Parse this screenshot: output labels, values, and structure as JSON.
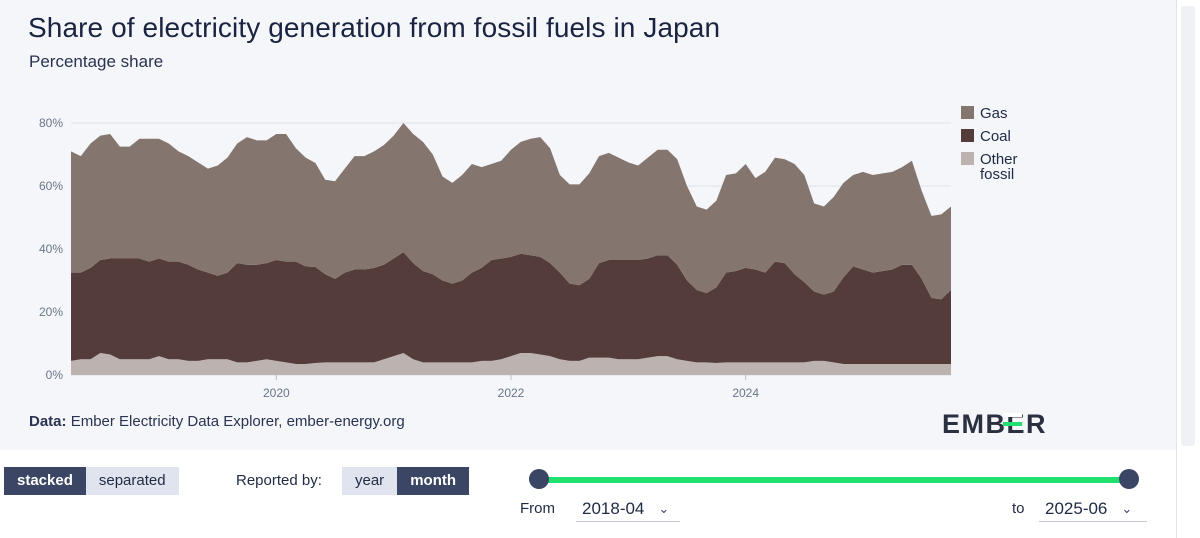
{
  "title": "Share of electricity generation from fossil fuels in Japan",
  "subtitle": "Percentage share",
  "source": {
    "label": "Data:",
    "text": "Ember Electricity Data Explorer, ember-energy.org"
  },
  "logo": {
    "text": "EMBER"
  },
  "colors": {
    "gas": "#85756f",
    "coal": "#533c3a",
    "other": "#bcb3b1",
    "grid": "#dfe2e8",
    "accent": "#22e070",
    "dark": "#3b4664"
  },
  "controls": {
    "view_options": [
      "stacked",
      "separated"
    ],
    "view_active": "stacked",
    "reported_label": "Reported by:",
    "reported_options": [
      "year",
      "month"
    ],
    "reported_active": "month",
    "from_label": "From",
    "to_label": "to",
    "from_value": "2018-04",
    "to_value": "2025-06"
  },
  "chart_data": {
    "type": "area",
    "stacked": true,
    "title": "Share of electricity generation from fossil fuels in Japan",
    "ylabel": "Percentage share",
    "ylim": [
      0,
      80
    ],
    "yticks": [
      0,
      20,
      40,
      60,
      80
    ],
    "ytick_labels": [
      "0%",
      "20%",
      "40%",
      "60%",
      "80%"
    ],
    "x_start": "2018-04",
    "x_end": "2025-06",
    "x_ticks": [
      "2020",
      "2022",
      "2024"
    ],
    "legend": [
      "Gas",
      "Coal",
      "Other fossil"
    ],
    "legend_position": "right",
    "series": [
      {
        "name": "Other fossil",
        "values": [
          4.5,
          5,
          5,
          7,
          6.5,
          5,
          5,
          5,
          5,
          6,
          5,
          5,
          4.5,
          4.5,
          5,
          5,
          5,
          4,
          4,
          4.5,
          5,
          4.5,
          4,
          3.5,
          3.5,
          3.8,
          4,
          4,
          4,
          4,
          4,
          4,
          5,
          6,
          7,
          5,
          4,
          4,
          4,
          4,
          4,
          4,
          4.5,
          4.5,
          5,
          6,
          7,
          7,
          6.5,
          6,
          5,
          4.5,
          4.5,
          5.5,
          5.5,
          5.5,
          5,
          5,
          5,
          5.5,
          6,
          6,
          5,
          4.5,
          4,
          4,
          3.8,
          4,
          4,
          4,
          4,
          4,
          4,
          4,
          4,
          4,
          4.5,
          4.5,
          4,
          3.5,
          3.5,
          3.5,
          3.5,
          3.5,
          3.5,
          3.5,
          3.5,
          3.5,
          3.5,
          3.5,
          3.5
        ]
      },
      {
        "name": "Coal",
        "values": [
          28,
          27.5,
          29,
          29.5,
          30.5,
          32,
          32,
          32,
          31,
          31,
          31,
          31,
          30.5,
          29,
          27.5,
          26.5,
          27.5,
          31.5,
          31,
          30.5,
          30.5,
          32,
          32,
          32.5,
          31,
          30.5,
          28,
          26.5,
          28.5,
          29.5,
          29.5,
          30,
          30,
          31,
          32,
          30.5,
          29,
          28,
          26,
          25,
          26,
          28.5,
          29.5,
          32,
          32,
          31.5,
          31.5,
          31,
          31,
          29.5,
          27.5,
          24.5,
          24,
          25,
          30,
          31,
          31.5,
          31.5,
          31.5,
          31.5,
          32,
          32,
          30,
          25.5,
          23,
          22,
          24,
          28.5,
          29,
          30,
          29.5,
          28.5,
          32,
          31.5,
          28,
          25.5,
          22,
          21,
          22.5,
          27.5,
          31,
          30,
          29,
          29.5,
          30,
          31.5,
          31.5,
          27,
          21,
          20.5,
          23.5
        ]
      },
      {
        "name": "Gas",
        "values": [
          38.5,
          37,
          39.5,
          39.5,
          39.5,
          35.5,
          35.5,
          38,
          39,
          38,
          37.5,
          35,
          34.5,
          34,
          33,
          35,
          36.5,
          38,
          40.5,
          39.5,
          39,
          40,
          40.5,
          36,
          34.5,
          33,
          30,
          31,
          33,
          36,
          36,
          37,
          38,
          39,
          41,
          41,
          41,
          38,
          33,
          32,
          33.5,
          34.5,
          32,
          30.5,
          31,
          34,
          35.5,
          37,
          38,
          36.5,
          31,
          31.5,
          32,
          33.5,
          34,
          34,
          32.5,
          31,
          30,
          32,
          33.5,
          33.5,
          33.5,
          30,
          26.5,
          26.5,
          27.5,
          31,
          31,
          33,
          29,
          32,
          33,
          33,
          35,
          34,
          28,
          28,
          30,
          30,
          29,
          31,
          31,
          31,
          31,
          31,
          33,
          28,
          26,
          27,
          26.5
        ]
      }
    ]
  }
}
